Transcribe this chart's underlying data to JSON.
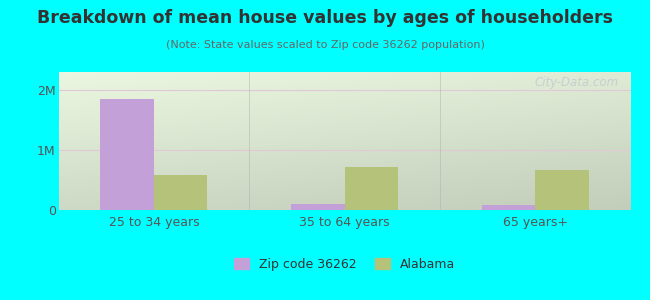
{
  "title": "Breakdown of mean house values by ages of householders",
  "subtitle": "(Note: State values scaled to Zip code 36262 population)",
  "categories": [
    "25 to 34 years",
    "35 to 64 years",
    "65 years+"
  ],
  "zip_values": [
    1850000,
    105000,
    85000
  ],
  "state_values": [
    590000,
    720000,
    660000
  ],
  "zip_color": "#c4a0d8",
  "state_color": "#b5c27a",
  "yticks": [
    0,
    1000000,
    2000000
  ],
  "ytick_labels": [
    "0",
    "1M",
    "2M"
  ],
  "ylim": [
    0,
    2300000
  ],
  "outer_bg": "#00ffff",
  "bar_width": 0.28,
  "legend_zip_label": "Zip code 36262",
  "legend_state_label": "Alabama",
  "watermark": "City-Data.com",
  "grid_color": "#e0c8d8",
  "divider_color": "#aaaaaa",
  "title_color": "#333333",
  "subtitle_color": "#666666",
  "tick_color": "#555555"
}
